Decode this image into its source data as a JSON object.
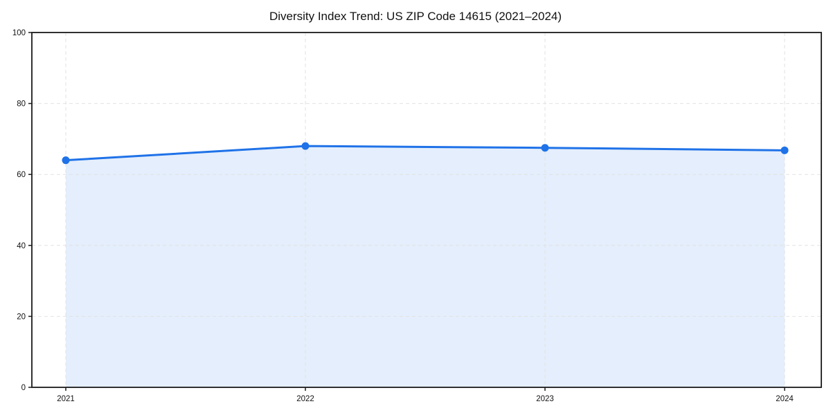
{
  "chart_data": {
    "type": "line",
    "title": "Diversity Index Trend: US ZIP Code 14615 (2021–2024)",
    "categories": [
      "2021",
      "2022",
      "2023",
      "2024"
    ],
    "x": [
      2021,
      2022,
      2023,
      2024
    ],
    "series": [
      {
        "name": "Diversity Index",
        "values": [
          64,
          68,
          67.5,
          66.8
        ]
      }
    ],
    "xlabel": "",
    "ylabel": "",
    "ylim": [
      0,
      100
    ],
    "yticks": [
      0,
      20,
      40,
      60,
      80,
      100
    ],
    "grid": true,
    "grid_style": "dashed",
    "legend_position": "none",
    "area_fill": true,
    "marker": "circle",
    "colors": {
      "line": "#1f72e8",
      "fill": "rgba(31,114,232,0.12)",
      "grid": "#e2e2e2",
      "axis": "#1a1a1a",
      "text": "#111111",
      "background": "#ffffff"
    }
  }
}
